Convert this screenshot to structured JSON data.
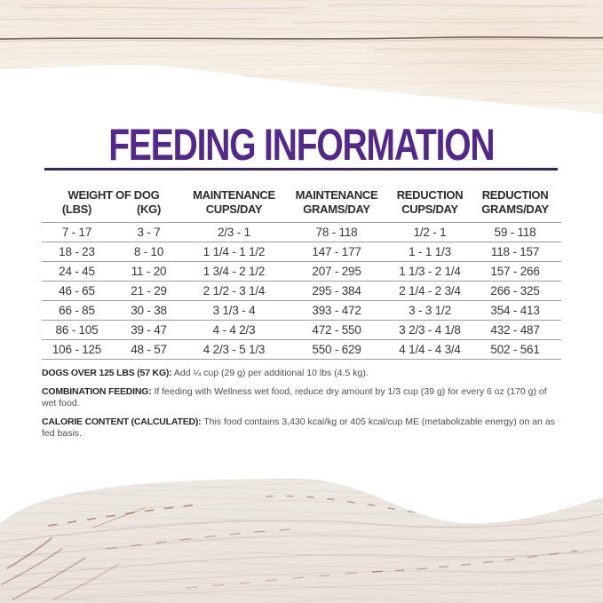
{
  "title": "FEEDING INFORMATION",
  "colors": {
    "accent_purple": "#54278b",
    "rule_purple": "#3e2167",
    "table_text": "#383838",
    "separator_gray": "#9c9c9c",
    "note_text": "#4f4f4f"
  },
  "table": {
    "group_headers": {
      "weight": "WEIGHT OF DOG",
      "maintenance_cups": "MAINTENANCE",
      "maintenance_grams": "MAINTENANCE",
      "reduction_cups": "REDUCTION",
      "reduction_grams": "REDUCTION"
    },
    "sub_headers": {
      "lbs": "(LBS)",
      "kg": "(KG)",
      "maintenance_cups": "CUPS/DAY",
      "maintenance_grams": "GRAMS/DAY",
      "reduction_cups": "CUPS/DAY",
      "reduction_grams": "GRAMS/DAY"
    },
    "rows": [
      {
        "lbs": "7 - 17",
        "kg": "3 - 7",
        "maintenance_cups": "2/3 - 1",
        "maintenance_grams": "78 - 118",
        "reduction_cups": "1/2 - 1",
        "reduction_grams": "59 - 118"
      },
      {
        "lbs": "18 - 23",
        "kg": "8 - 10",
        "maintenance_cups": "1 1/4 - 1 1/2",
        "maintenance_grams": "147 - 177",
        "reduction_cups": "1 - 1 1/3",
        "reduction_grams": "118 - 157"
      },
      {
        "lbs": "24 - 45",
        "kg": "11 - 20",
        "maintenance_cups": "1 3/4 - 2 1/2",
        "maintenance_grams": "207 - 295",
        "reduction_cups": "1 1/3 - 2 1/4",
        "reduction_grams": "157 - 266"
      },
      {
        "lbs": "46 - 65",
        "kg": "21 - 29",
        "maintenance_cups": "2 1/2 - 3 1/4",
        "maintenance_grams": "295 - 384",
        "reduction_cups": "2 1/4 - 2 3/4",
        "reduction_grams": "266 - 325"
      },
      {
        "lbs": "66 - 85",
        "kg": "30 - 38",
        "maintenance_cups": "3 1/3 - 4",
        "maintenance_grams": "393 - 472",
        "reduction_cups": "3 - 3 1/2",
        "reduction_grams": "354 - 413"
      },
      {
        "lbs": "86 - 105",
        "kg": "39 - 47",
        "maintenance_cups": "4 - 4 2/3",
        "maintenance_grams": "472 - 550",
        "reduction_cups": "3 2/3 - 4 1/8",
        "reduction_grams": "432 - 487"
      },
      {
        "lbs": "106 - 125",
        "kg": "48 - 57",
        "maintenance_cups": "4 2/3 - 5 1/3",
        "maintenance_grams": "550 - 629",
        "reduction_cups": "4 1/4 - 4 3/4",
        "reduction_grams": "502 - 561"
      }
    ]
  },
  "notes": [
    {
      "label": "DOGS OVER 125 LBS (57 KG):",
      "text": "Add ¼ cup (29 g) per additional 10 lbs (4.5 kg)."
    },
    {
      "label": "COMBINATION FEEDING:",
      "text": "If feeding with Wellness wet food, reduce dry amount by 1/3 cup (39 g) for every 6 oz (170 g) of wet food."
    },
    {
      "label": "CALORIE CONTENT (CALCULATED):",
      "text": "This food contains 3,430 kcal/kg or 405 kcal/cup ME (metabolizable energy) on an as fed basis."
    }
  ]
}
